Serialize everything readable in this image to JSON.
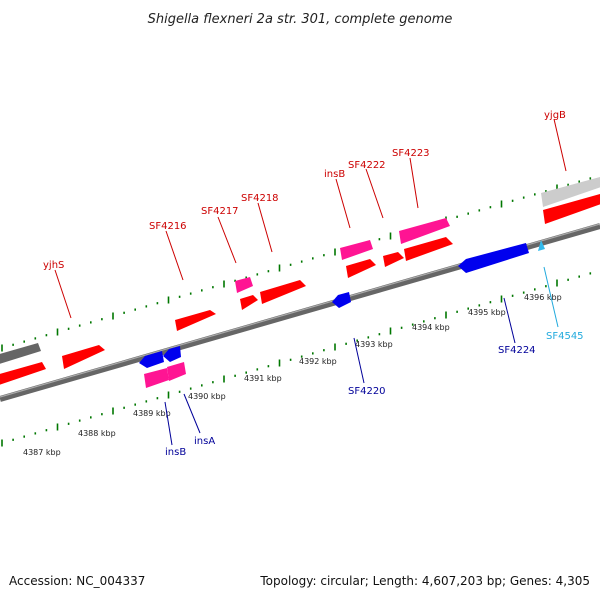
{
  "title": "Shigella flexneri 2a str. 301, complete genome",
  "footer": {
    "accession": "Accession: NC_004337",
    "summary": "Topology: circular; Length: 4,607,203 bp; Genes: 4,305"
  },
  "colors": {
    "forward_cds": "#ff0000",
    "insertion_element": "#ff1493",
    "reverse_cds": "#0000ee",
    "reverse_rna": "#33bbee",
    "gray_feature": "#888888",
    "label_forward": "#cc0000",
    "label_reverse": "#000099",
    "label_rna": "#22aadd",
    "tick_green": "#007700"
  },
  "ticks": [
    {
      "label": "4387 kbp"
    },
    {
      "label": "4388 kbp"
    },
    {
      "label": "4389 kbp"
    },
    {
      "label": "4390 kbp"
    },
    {
      "label": "4391 kbp"
    },
    {
      "label": "4392 kbp"
    },
    {
      "label": "4393 kbp"
    },
    {
      "label": "4394 kbp"
    },
    {
      "label": "4395 kbp"
    },
    {
      "label": "4396 kbp"
    }
  ],
  "gene_labels": [
    {
      "name": "yjhS",
      "strand": "forward"
    },
    {
      "name": "SF4216",
      "strand": "forward"
    },
    {
      "name": "SF4217",
      "strand": "forward"
    },
    {
      "name": "SF4218",
      "strand": "forward"
    },
    {
      "name": "insB",
      "strand": "forward"
    },
    {
      "name": "SF4222",
      "strand": "forward"
    },
    {
      "name": "SF4223",
      "strand": "forward"
    },
    {
      "name": "yjgB",
      "strand": "forward"
    },
    {
      "name": "insB",
      "strand": "reverse"
    },
    {
      "name": "insA",
      "strand": "reverse"
    },
    {
      "name": "SF4220",
      "strand": "reverse"
    },
    {
      "name": "SF4224",
      "strand": "reverse"
    },
    {
      "name": "SF4545",
      "strand": "reverse-rna"
    }
  ]
}
